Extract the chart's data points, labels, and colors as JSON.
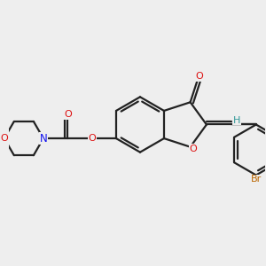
{
  "bg_color": "#eeeeee",
  "bond_color": "#222222",
  "bond_lw": 1.6,
  "atom_colors": {
    "O": "#dd1111",
    "N": "#1111ee",
    "Br": "#bb6600",
    "H": "#339999",
    "C": "#222222"
  },
  "fig_size": [
    3.0,
    3.0
  ],
  "dpi": 100,
  "xlim": [
    -3.8,
    3.8
  ],
  "ylim": [
    -3.2,
    3.2
  ]
}
